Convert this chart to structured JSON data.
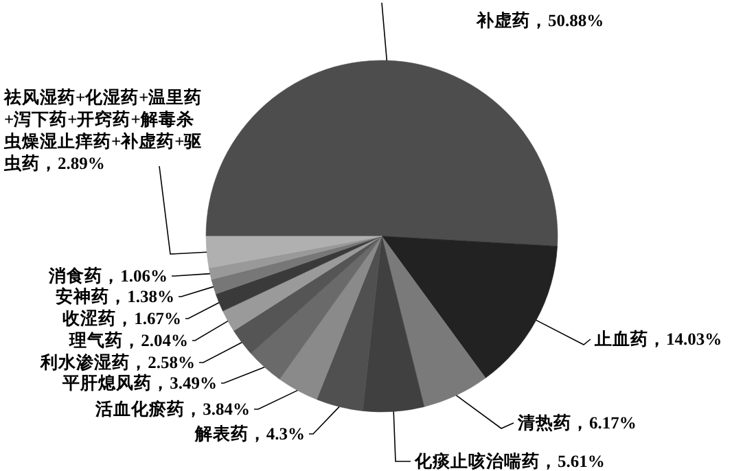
{
  "chart_data": {
    "type": "pie",
    "categories": [
      "补虚药",
      "止血药",
      "清热药",
      "化痰止咳治喘药",
      "解表药",
      "活血化瘀药",
      "平肝熄风药",
      "利水渗湿药",
      "理气药",
      "收涩药",
      "安神药",
      "消食药",
      "祛风湿药+化湿药+温里药+泻下药+开窍药+解毒杀虫燥湿止痒药+补虚药+驱虫药"
    ],
    "values": [
      50.88,
      14.03,
      6.17,
      5.61,
      4.3,
      3.84,
      3.49,
      2.58,
      2.04,
      1.67,
      1.38,
      1.06,
      2.89
    ],
    "value_labels": [
      "50.88%",
      "14.03%",
      "6.17%",
      "5.61%",
      "4.3%",
      "3.84%",
      "3.49%",
      "2.58%",
      "2.04%",
      "1.67%",
      "1.38%",
      "1.06%",
      "2.89%"
    ],
    "colors": [
      "#4d4d4d",
      "#222222",
      "#7a7a7a",
      "#404040",
      "#505050",
      "#8a8a8a",
      "#6a6a6a",
      "#555555",
      "#9a9a9a",
      "#3a3a3a",
      "#777777",
      "#999999",
      "#b0b0b0"
    ]
  }
}
